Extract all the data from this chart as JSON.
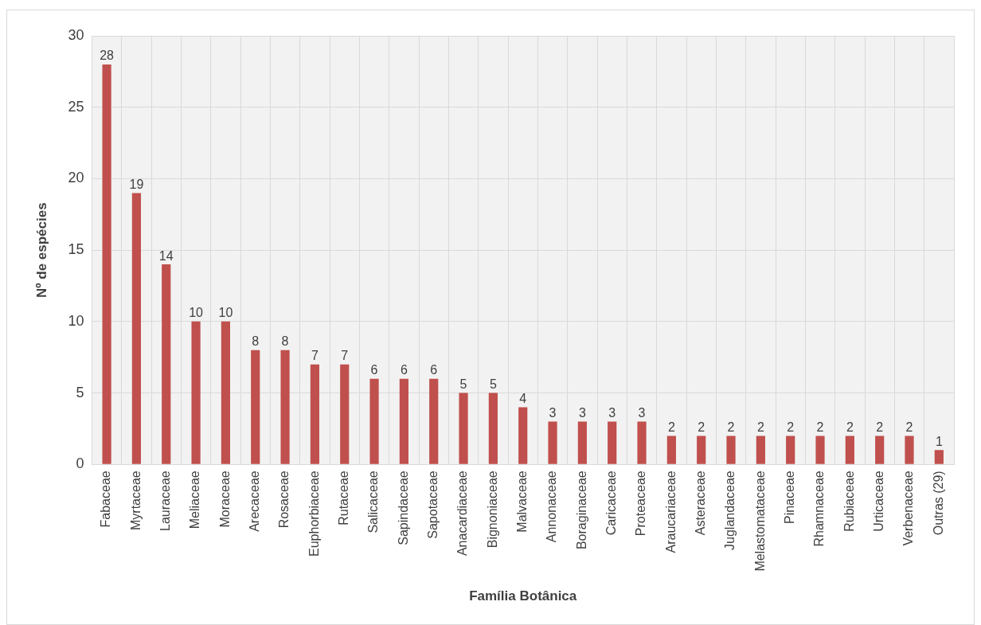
{
  "chart_data": {
    "type": "bar",
    "xlabel": "Família Botânica",
    "ylabel": "Nº de espécies",
    "categories": [
      "Fabaceae",
      "Myrtaceae",
      "Lauraceae",
      "Meliaceae",
      "Moraceae",
      "Arecaceae",
      "Rosaceae",
      "Euphorbiaceae",
      "Rutaceae",
      "Salicaceae",
      "Sapindaceae",
      "Sapotaceae",
      "Anacardiaceae",
      "Bignoniaceae",
      "Malvaceae",
      "Annonaceae",
      "Boraginaceae",
      "Caricaceae",
      "Proteaceae",
      "Araucariaceae",
      "Asteraceae",
      "Juglandaceae",
      "Melastomataceae",
      "Pinaceae",
      "Rhamnaceae",
      "Rubiaceae",
      "Urticaceae",
      "Verbenaceae",
      "Outras (29)"
    ],
    "values": [
      28,
      19,
      14,
      10,
      10,
      8,
      8,
      7,
      7,
      6,
      6,
      6,
      5,
      5,
      4,
      3,
      3,
      3,
      3,
      2,
      2,
      2,
      2,
      2,
      2,
      2,
      2,
      2,
      1
    ],
    "color": "#c0504d",
    "ylim": [
      0,
      30
    ],
    "yticks": [
      0,
      5,
      10,
      15,
      20,
      25,
      30
    ],
    "grid": true,
    "data_labels": true
  }
}
